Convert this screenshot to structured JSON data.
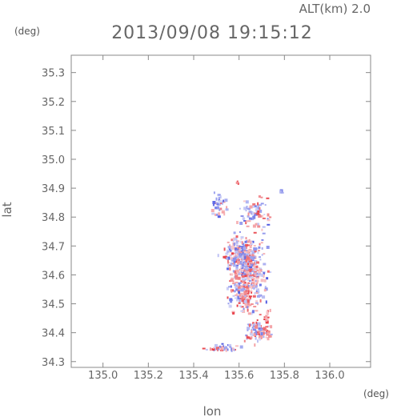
{
  "altitude_label": "ALT(km)  2.0",
  "timestamp": "2013/09/08 19:15:12",
  "colors": {
    "positive": "#e8505a",
    "negative": "#5a64e6",
    "frame": "#888888"
  },
  "chart_data": {
    "type": "heatmap",
    "title": "2013/09/08 19:15:12",
    "xlabel": "lon",
    "ylabel": "lat",
    "x_unit": "(deg)",
    "y_unit": "(deg)",
    "xlim": [
      134.86,
      136.18
    ],
    "ylim": [
      34.28,
      35.36
    ],
    "xticks": [
      "135.0",
      "135.2",
      "135.4",
      "135.6",
      "135.8",
      "136.0"
    ],
    "xtick_values": [
      135.0,
      135.2,
      135.4,
      135.6,
      135.8,
      136.0
    ],
    "yticks": [
      "34.3",
      "34.4",
      "34.5",
      "34.6",
      "34.7",
      "34.8",
      "34.9",
      "35.0",
      "35.1",
      "35.2",
      "35.3"
    ],
    "ytick_values": [
      34.3,
      34.4,
      34.5,
      34.6,
      34.7,
      34.8,
      34.9,
      35.0,
      35.1,
      35.2,
      35.3
    ],
    "grid": false,
    "clusters": [
      {
        "lon": 135.51,
        "lat": 34.84,
        "sx": 0.022,
        "sy": 0.03,
        "n": 40,
        "bias": -0.2
      },
      {
        "lon": 135.67,
        "lat": 34.81,
        "sx": 0.045,
        "sy": 0.035,
        "n": 70,
        "bias": 0.1
      },
      {
        "lon": 135.63,
        "lat": 34.61,
        "sx": 0.055,
        "sy": 0.08,
        "n": 420,
        "bias": 0.0
      },
      {
        "lon": 135.6,
        "lat": 34.68,
        "sx": 0.05,
        "sy": 0.035,
        "n": 160,
        "bias": -0.1
      },
      {
        "lon": 135.62,
        "lat": 34.52,
        "sx": 0.02,
        "sy": 0.035,
        "n": 60,
        "bias": 0.3
      },
      {
        "lon": 135.68,
        "lat": 34.41,
        "sx": 0.045,
        "sy": 0.025,
        "n": 90,
        "bias": 0.2
      },
      {
        "lon": 135.52,
        "lat": 34.35,
        "sx": 0.05,
        "sy": 0.008,
        "n": 40,
        "bias": 0.0
      },
      {
        "lon": 135.72,
        "lat": 34.46,
        "sx": 0.008,
        "sy": 0.018,
        "n": 12,
        "bias": 0.6
      },
      {
        "lon": 135.59,
        "lat": 34.92,
        "sx": 0.004,
        "sy": 0.004,
        "n": 3,
        "bias": 0.9
      },
      {
        "lon": 135.78,
        "lat": 34.89,
        "sx": 0.005,
        "sy": 0.004,
        "n": 3,
        "bias": -0.3
      }
    ]
  }
}
